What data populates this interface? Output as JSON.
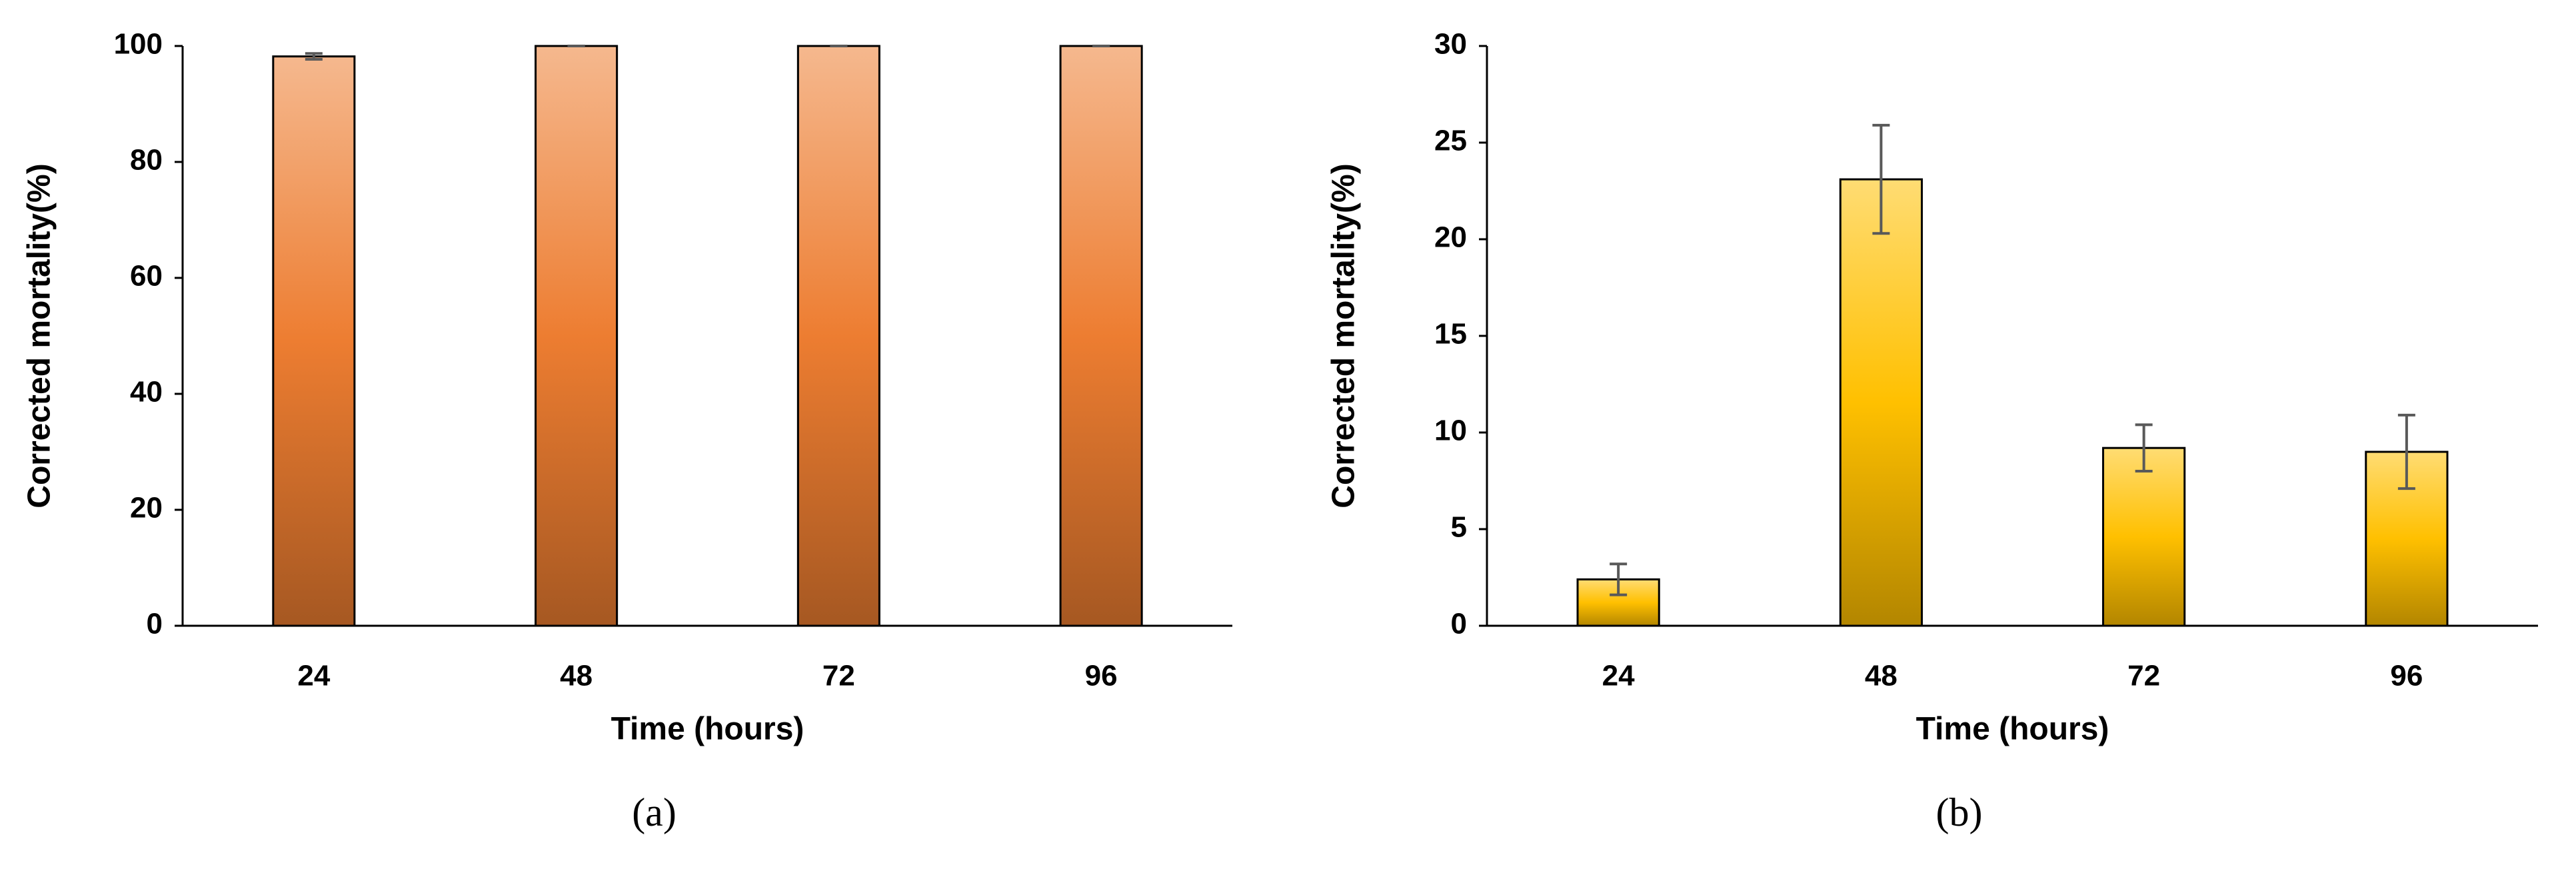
{
  "chart_data": [
    {
      "type": "bar",
      "caption": "(a)",
      "xlabel": "Time (hours)",
      "ylabel": "Corrected mortality(%)",
      "categories": [
        "24",
        "48",
        "72",
        "96"
      ],
      "values": [
        98.2,
        100,
        100,
        100
      ],
      "errors": [
        0.5,
        0,
        0,
        0
      ],
      "color": "#ed7d31",
      "ylim": [
        0,
        100
      ],
      "yticks": [
        0,
        20,
        40,
        60,
        80,
        100
      ]
    },
    {
      "type": "bar",
      "caption": "(b)",
      "xlabel": "Time (hours)",
      "ylabel": "Corrected mortality(%)",
      "categories": [
        "24",
        "48",
        "72",
        "96"
      ],
      "values": [
        2.4,
        23.1,
        9.2,
        9.0
      ],
      "errors": [
        0.8,
        2.8,
        1.2,
        1.9
      ],
      "color": "#ffc000",
      "ylim": [
        0,
        30
      ],
      "yticks": [
        0,
        5,
        10,
        15,
        20,
        25,
        30
      ]
    }
  ]
}
